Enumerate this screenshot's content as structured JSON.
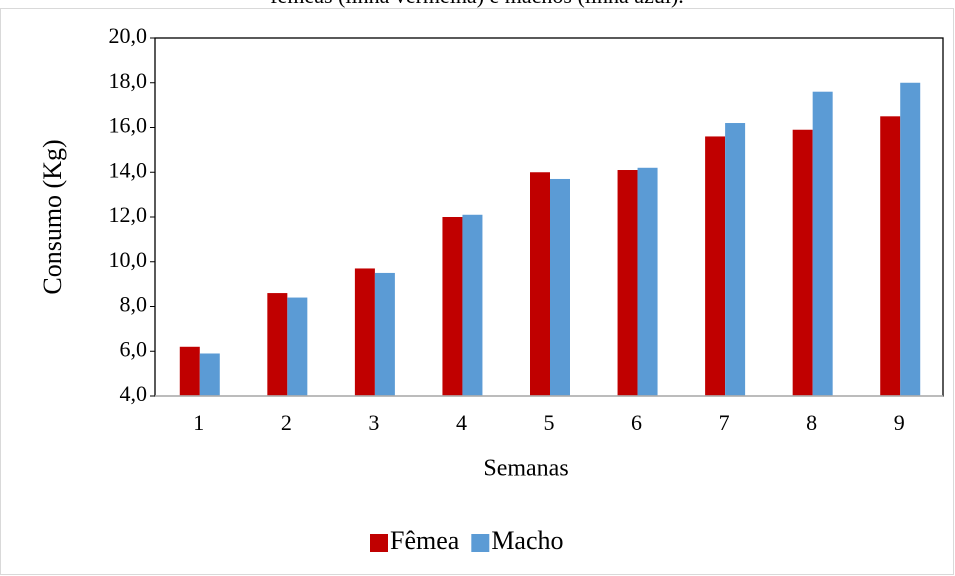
{
  "chart_data": {
    "type": "bar",
    "title": "fêmeas (linha vermelha) e machos (linha azul).",
    "x_label": "Semanas",
    "y_label": "Consumo (Kg)",
    "categories": [
      "1",
      "2",
      "3",
      "4",
      "5",
      "6",
      "7",
      "8",
      "9"
    ],
    "series": [
      {
        "name": "Fêmea",
        "color": "#c00000",
        "values": [
          6.2,
          8.6,
          9.7,
          12.0,
          14.0,
          14.1,
          15.6,
          15.9,
          16.5
        ]
      },
      {
        "name": "Macho",
        "color": "#5b9bd5",
        "values": [
          5.9,
          8.4,
          9.5,
          12.1,
          13.7,
          14.2,
          16.2,
          17.6,
          18.0
        ]
      }
    ],
    "ylim": [
      4,
      20
    ],
    "yticks": [
      {
        "value": 4,
        "label": "4,0"
      },
      {
        "value": 6,
        "label": "6,0"
      },
      {
        "value": 8,
        "label": "8,0"
      },
      {
        "value": 10,
        "label": "10,0"
      },
      {
        "value": 12,
        "label": "12,0"
      },
      {
        "value": 14,
        "label": "14,0"
      },
      {
        "value": 16,
        "label": "16,0"
      },
      {
        "value": 18,
        "label": "18,0"
      },
      {
        "value": 20,
        "label": "20,0"
      }
    ],
    "legend": "bottom"
  }
}
